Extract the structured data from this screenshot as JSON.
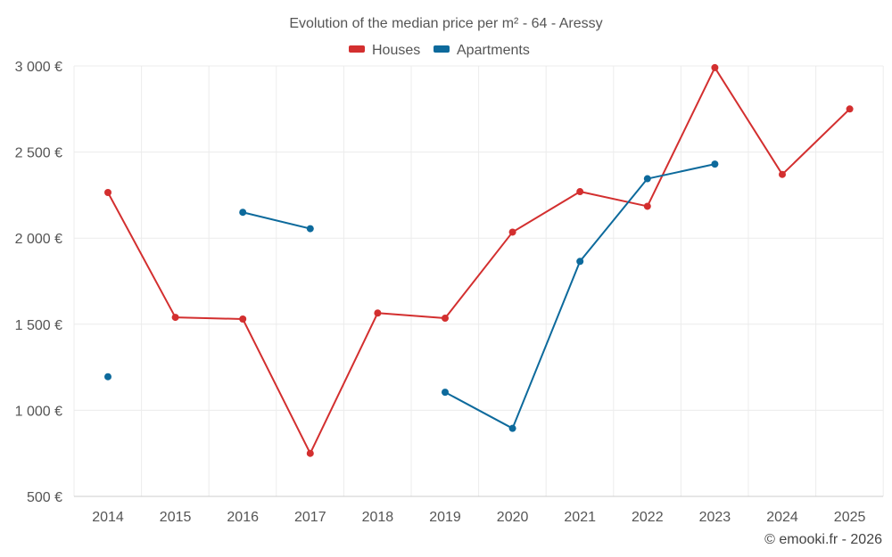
{
  "chart_data": {
    "type": "line",
    "title": "Evolution of the median price per m² - 64 - Aressy",
    "categories": [
      "2014",
      "2015",
      "2016",
      "2017",
      "2018",
      "2019",
      "2020",
      "2021",
      "2022",
      "2023",
      "2024",
      "2025"
    ],
    "series": [
      {
        "name": "Houses",
        "color": "#d32f2f",
        "values": [
          2265,
          1540,
          1530,
          750,
          1565,
          1535,
          2035,
          2270,
          2185,
          2990,
          2370,
          2750
        ]
      },
      {
        "name": "Apartments",
        "color": "#0d6a9c",
        "values": [
          1195,
          null,
          2150,
          2055,
          null,
          1105,
          895,
          1865,
          2345,
          2430,
          null,
          null
        ]
      }
    ],
    "yticks": [
      500,
      1000,
      1500,
      2000,
      2500,
      3000
    ],
    "ytick_labels": [
      "500 €",
      "1 000 €",
      "1 500 €",
      "2 000 €",
      "2 500 €",
      "3 000 €"
    ],
    "ylim": [
      500,
      3000
    ],
    "xlabel": "",
    "ylabel": "",
    "grid": true,
    "legend_position": "top-center"
  },
  "credit": "© emooki.fr - 2026"
}
